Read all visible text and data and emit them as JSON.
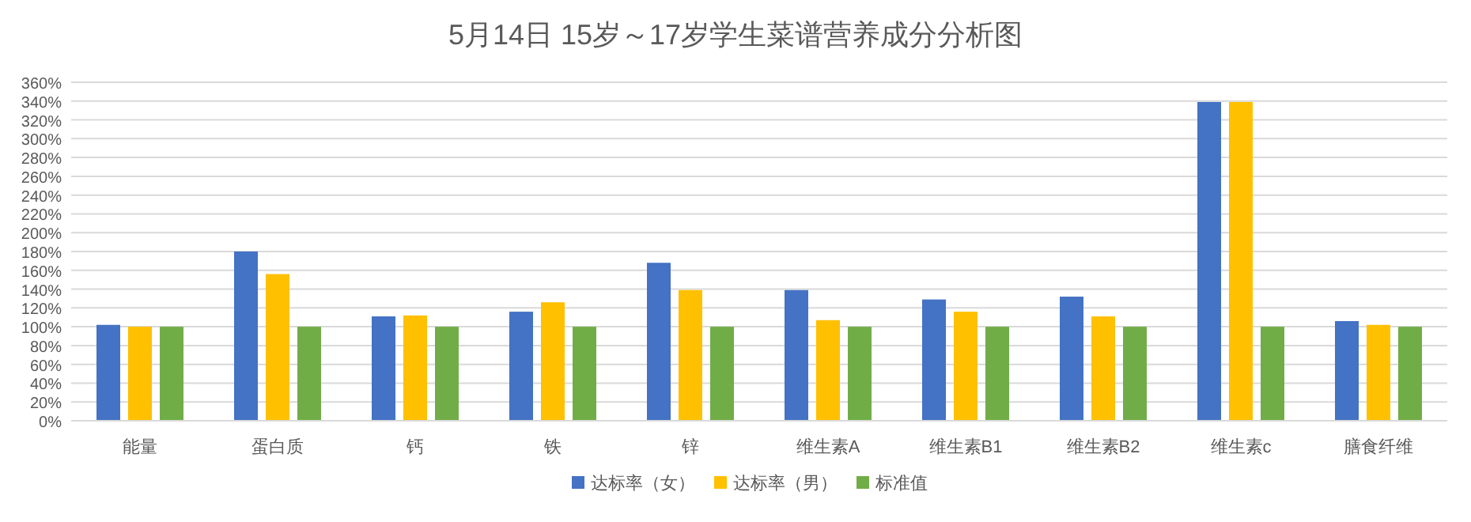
{
  "chart_data": {
    "type": "bar",
    "title": "5月14日 15岁～17岁学生菜谱营养成分分析图",
    "categories": [
      "能量",
      "蛋白质",
      "钙",
      "铁",
      "锌",
      "维生素A",
      "维生素B1",
      "维生素B2",
      "维生素c",
      "膳食纤维"
    ],
    "series": [
      {
        "name": "达标率（女）",
        "color": "#4472c4",
        "values": [
          102,
          180,
          111,
          116,
          168,
          139,
          129,
          132,
          339,
          106
        ]
      },
      {
        "name": "达标率（男）",
        "color": "#ffc000",
        "values": [
          100,
          156,
          112,
          126,
          139,
          107,
          116,
          111,
          339,
          102
        ]
      },
      {
        "name": "标准值",
        "color": "#70ad47",
        "values": [
          100,
          100,
          100,
          100,
          100,
          100,
          100,
          100,
          100,
          100
        ]
      }
    ],
    "ylim": [
      0,
      360
    ],
    "yticks": [
      {
        "value": 0,
        "label": "0%"
      },
      {
        "value": 20,
        "label": "20%"
      },
      {
        "value": 40,
        "label": "40%"
      },
      {
        "value": 60,
        "label": "60%"
      },
      {
        "value": 80,
        "label": "80%"
      },
      {
        "value": 100,
        "label": "100%"
      },
      {
        "value": 120,
        "label": "120%"
      },
      {
        "value": 140,
        "label": "140%"
      },
      {
        "value": 160,
        "label": "160%"
      },
      {
        "value": 180,
        "label": "180%"
      },
      {
        "value": 200,
        "label": "200%"
      },
      {
        "value": 220,
        "label": "220%"
      },
      {
        "value": 240,
        "label": "240%"
      },
      {
        "value": 260,
        "label": "260%"
      },
      {
        "value": 280,
        "label": "280%"
      },
      {
        "value": 300,
        "label": "300%"
      },
      {
        "value": 320,
        "label": "320%"
      },
      {
        "value": 340,
        "label": "340%"
      },
      {
        "value": 360,
        "label": "360%"
      }
    ],
    "grid": "y",
    "legend": "bottom"
  }
}
